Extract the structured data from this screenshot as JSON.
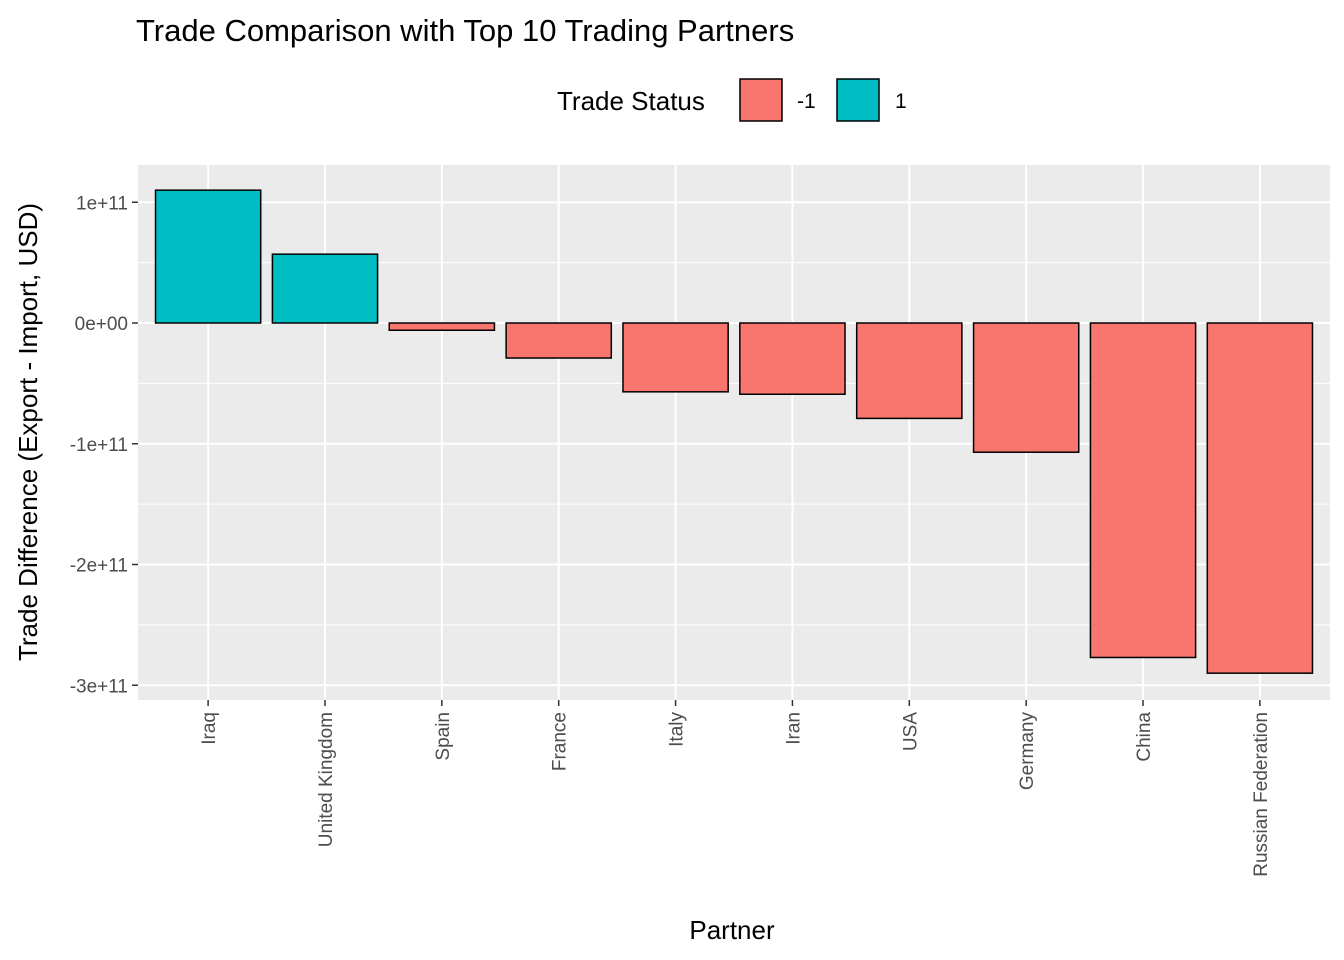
{
  "chart_data": {
    "type": "bar",
    "title": "Trade Comparison with Top 10 Trading Partners",
    "xlabel": "Partner",
    "ylabel": "Trade Difference (Export - Import, USD)",
    "categories": [
      "Iraq",
      "United Kingdom",
      "Spain",
      "France",
      "Italy",
      "Iran",
      "USA",
      "Germany",
      "China",
      "Russian Federation"
    ],
    "values": [
      110000000000,
      57000000000,
      -6000000000,
      -29000000000,
      -57000000000,
      -59000000000,
      -79000000000,
      -107000000000,
      -277000000000,
      -290000000000
    ],
    "status": [
      1,
      1,
      -1,
      -1,
      -1,
      -1,
      -1,
      -1,
      -1,
      -1
    ],
    "ylim": [
      -300000000000,
      110000000000
    ],
    "yticks": [
      100000000000,
      0,
      -100000000000,
      -200000000000,
      -300000000000
    ],
    "ytick_labels": [
      "1e+11",
      "0e+00",
      "-1e+11",
      "-2e+11",
      "-3e+11"
    ],
    "legend": {
      "title": "Trade Status",
      "position": "top",
      "entries": [
        {
          "label": "-1",
          "color": "#F8766D"
        },
        {
          "label": "1",
          "color": "#00BFC4"
        }
      ]
    },
    "colors": {
      "-1": "#F8766D",
      "1": "#00BFC4"
    },
    "panel_background": "#EBEBEB",
    "grid": true
  }
}
